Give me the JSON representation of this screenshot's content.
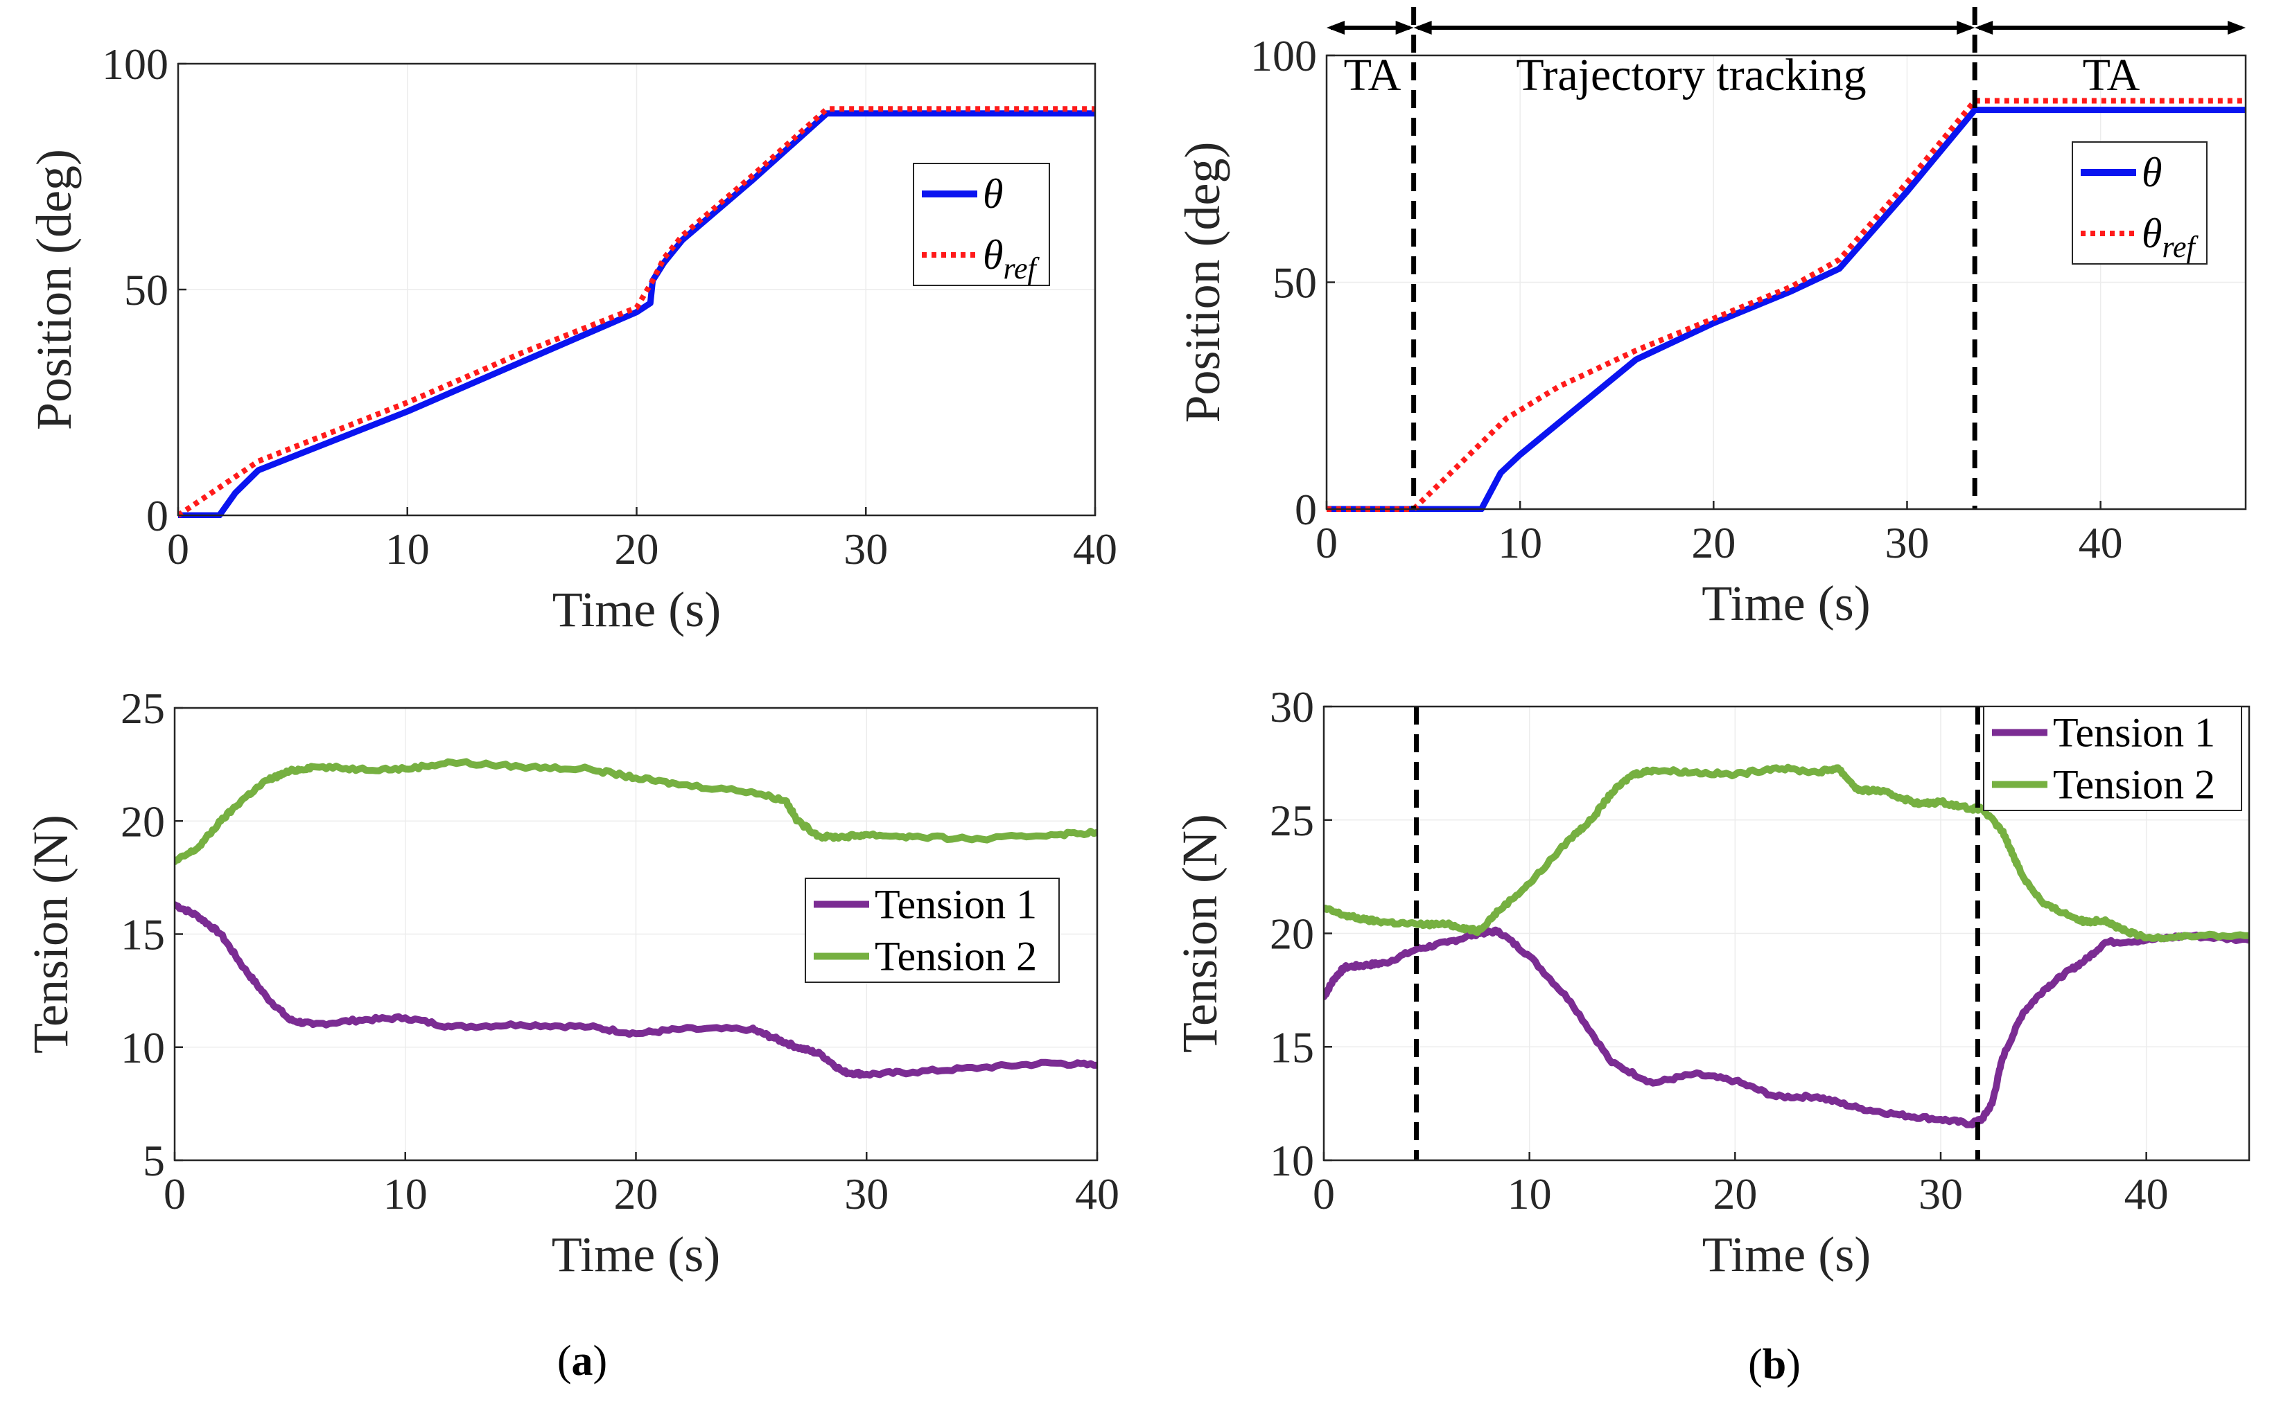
{
  "panel_labels": {
    "a": "a",
    "b": "b",
    "open": "(",
    "close": ")"
  },
  "colors": {
    "theta": "#0a14f0",
    "theta_ref": "#ff1a1a",
    "tension1": "#7b2c93",
    "tension2": "#76b041",
    "dashed": "#000000"
  },
  "chart_data": [
    {
      "id": "a_position",
      "type": "line",
      "xlabel": "Time (s)",
      "ylabel": "Position (deg)",
      "xlim": [
        0,
        40
      ],
      "ylim": [
        0,
        100
      ],
      "xticks": [
        0,
        10,
        20,
        30,
        40
      ],
      "yticks": [
        0,
        50,
        100
      ],
      "legend": {
        "placement": "upper-right",
        "entries": [
          {
            "symbol": "θ",
            "sub": ""
          },
          {
            "symbol": "θ",
            "sub": "ref"
          }
        ]
      },
      "series": [
        {
          "name": "θ",
          "style": "solid",
          "color": "#0a14f0",
          "x": [
            0,
            1.8,
            2.5,
            3.5,
            6,
            10,
            15,
            20,
            20.6,
            20.7,
            21.2,
            22,
            25,
            28.3,
            40
          ],
          "y": [
            0,
            0,
            5,
            10,
            15,
            23,
            34,
            45,
            47,
            52,
            56,
            61,
            74,
            89,
            89
          ]
        },
        {
          "name": "θ_ref",
          "style": "dotted",
          "color": "#ff1a1a",
          "x": [
            0,
            3.5,
            6,
            10,
            15,
            20,
            20.7,
            21.2,
            22,
            25,
            28.3,
            40
          ],
          "y": [
            0,
            12,
            17,
            25,
            36,
            46,
            52,
            57,
            62,
            75,
            90,
            90
          ]
        }
      ]
    },
    {
      "id": "b_position",
      "type": "line",
      "xlabel": "Time (s)",
      "ylabel": "Position (deg)",
      "xlim": [
        0,
        47.5
      ],
      "ylim": [
        0,
        100
      ],
      "xticks": [
        0,
        10,
        20,
        30,
        40
      ],
      "yticks": [
        0,
        50,
        100
      ],
      "vlines": [
        4.5,
        33.5
      ],
      "phases": [
        {
          "label": "TA",
          "start": 0,
          "end": 4.5
        },
        {
          "label": "Trajectory tracking",
          "start": 4.5,
          "end": 33.5
        },
        {
          "label": "TA",
          "start": 33.5,
          "end": 47.5
        }
      ],
      "legend": {
        "placement": "upper-right",
        "entries": [
          {
            "symbol": "θ",
            "sub": ""
          },
          {
            "symbol": "θ",
            "sub": "ref"
          }
        ]
      },
      "series": [
        {
          "name": "θ",
          "style": "solid",
          "color": "#0a14f0",
          "x": [
            0,
            4.5,
            8,
            8.5,
            9,
            9.5,
            10,
            12,
            16,
            20,
            24,
            26.5,
            30,
            33.5,
            47.5
          ],
          "y": [
            0,
            0,
            0,
            4,
            8,
            10,
            12,
            19,
            33,
            41,
            48,
            53,
            70,
            88,
            88
          ]
        },
        {
          "name": "θ_ref",
          "style": "dotted",
          "color": "#ff1a1a",
          "x": [
            0,
            4.5,
            9.3,
            12,
            16,
            20,
            24,
            26.5,
            30,
            33.5,
            47.5
          ],
          "y": [
            0,
            0,
            20,
            27,
            35,
            42,
            49,
            55,
            72,
            90,
            90
          ]
        }
      ]
    },
    {
      "id": "a_tension",
      "type": "line",
      "xlabel": "Time (s)",
      "ylabel": "Tension (N)",
      "xlim": [
        0,
        40
      ],
      "ylim": [
        5,
        25
      ],
      "xticks": [
        0,
        10,
        20,
        30,
        40
      ],
      "yticks": [
        5,
        10,
        15,
        20,
        25
      ],
      "legend": {
        "placement": "center-right",
        "entries": [
          {
            "name": "Tension 1"
          },
          {
            "name": "Tension 2"
          }
        ]
      },
      "series": [
        {
          "name": "Tension 1",
          "color": "#7b2c93",
          "x": [
            0,
            1,
            2,
            3,
            4,
            5,
            6,
            8,
            10,
            12,
            15,
            18,
            20,
            22,
            25,
            26,
            27,
            28,
            29,
            30,
            32,
            35,
            38,
            40
          ],
          "y": [
            16.3,
            15.8,
            15.0,
            13.5,
            12.2,
            11.2,
            11.0,
            11.2,
            11.3,
            10.9,
            11.0,
            10.9,
            10.6,
            10.8,
            10.8,
            10.4,
            10.0,
            9.7,
            8.9,
            8.8,
            8.9,
            9.1,
            9.3,
            9.2
          ]
        },
        {
          "name": "Tension 2",
          "color": "#76b041",
          "x": [
            0,
            1,
            2,
            3,
            4,
            5,
            6,
            8,
            10,
            12,
            15,
            18,
            20,
            22,
            25,
            26.5,
            27,
            28,
            29,
            30,
            32,
            35,
            38,
            40
          ],
          "y": [
            18.2,
            18.8,
            20.0,
            21.0,
            21.8,
            22.2,
            22.4,
            22.3,
            22.3,
            22.6,
            22.4,
            22.3,
            21.9,
            21.6,
            21.3,
            20.9,
            20.0,
            19.3,
            19.3,
            19.4,
            19.3,
            19.2,
            19.4,
            19.5
          ]
        }
      ]
    },
    {
      "id": "b_tension",
      "type": "line",
      "xlabel": "Time (s)",
      "ylabel": "Tension (N)",
      "xlim": [
        0,
        45
      ],
      "ylim": [
        10,
        30
      ],
      "xticks": [
        0,
        10,
        20,
        30,
        40
      ],
      "yticks": [
        10,
        15,
        20,
        25,
        30
      ],
      "vlines": [
        4.5,
        31.8
      ],
      "legend": {
        "placement": "upper-right",
        "entries": [
          {
            "name": "Tension 1"
          },
          {
            "name": "Tension 2"
          }
        ]
      },
      "series": [
        {
          "name": "Tension 1",
          "color": "#7b2c93",
          "x": [
            0,
            0.5,
            1,
            2,
            3,
            4.5,
            6,
            7.5,
            8.5,
            10,
            12,
            14,
            16,
            18,
            20,
            22,
            24,
            26,
            28,
            30,
            31.5,
            32,
            32.5,
            33,
            34,
            35,
            36,
            37,
            38,
            40,
            42,
            45
          ],
          "y": [
            17.2,
            18.0,
            18.5,
            18.6,
            18.7,
            19.3,
            19.6,
            20.0,
            20.1,
            19.0,
            17.0,
            14.3,
            13.4,
            13.8,
            13.5,
            12.8,
            12.8,
            12.3,
            12.0,
            11.8,
            11.6,
            11.8,
            12.5,
            14.5,
            16.5,
            17.5,
            18.2,
            18.8,
            19.6,
            19.7,
            19.9,
            19.7
          ]
        },
        {
          "name": "Tension 2",
          "color": "#76b041",
          "x": [
            0,
            1,
            2,
            3,
            4.5,
            6,
            7,
            7.5,
            8.5,
            10,
            12,
            13,
            14,
            15,
            16,
            18,
            20,
            22,
            24,
            25,
            26,
            27,
            28,
            29,
            30,
            31.5,
            32,
            33,
            33.5,
            34,
            35,
            36,
            37,
            38,
            38.5,
            39,
            40,
            42,
            45
          ],
          "y": [
            21.1,
            20.8,
            20.6,
            20.5,
            20.4,
            20.4,
            20.2,
            20.1,
            21.0,
            22.2,
            24.2,
            25.0,
            26.2,
            27.0,
            27.2,
            27.1,
            27.0,
            27.3,
            27.1,
            27.3,
            26.3,
            26.3,
            26.0,
            25.7,
            25.8,
            25.5,
            25.5,
            24.5,
            23.5,
            22.5,
            21.3,
            20.9,
            20.5,
            20.6,
            20.3,
            20.1,
            19.8,
            19.9,
            19.9
          ]
        }
      ]
    }
  ]
}
